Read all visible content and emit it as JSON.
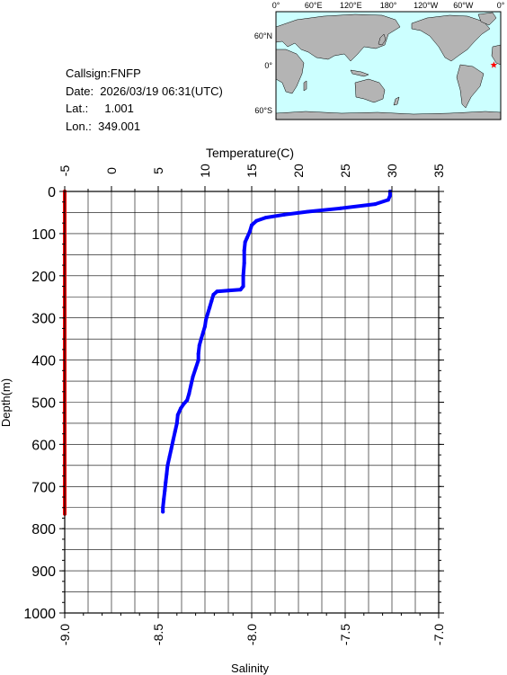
{
  "info": {
    "callsign": "Callsign:FNFP",
    "date": "Date:  2026/03/19 06:31(UTC)",
    "lat": "Lat.:     1.001",
    "lon": "Lon.:  349.001"
  },
  "map": {
    "lon_labels": [
      "0°",
      "60°E",
      "120°E",
      "180°",
      "120°W",
      "60°W",
      "0°"
    ],
    "lat_labels": [
      "60°N",
      "0°",
      "60°S"
    ],
    "station_marker": {
      "lon": 349.001,
      "lat": 1.001,
      "symbol": "star",
      "color": "#ff0000"
    },
    "ocean_color": "#ccffff",
    "land_color": "#b4b4b4"
  },
  "chart_data": {
    "type": "line",
    "top_axis": {
      "label": "Temperature(C)",
      "ticks": [
        "-5",
        "0",
        "5",
        "10",
        "15",
        "20",
        "25",
        "30",
        "35"
      ],
      "range": [
        -5,
        35
      ]
    },
    "bottom_axis": {
      "label": "Salinity",
      "ticks": [
        "-9.0",
        "-8.5",
        "-8.0",
        "-7.5",
        "-7.0"
      ],
      "range": [
        -9.0,
        -7.0
      ]
    },
    "y_axis": {
      "label": "Depth(m)",
      "ticks": [
        "0",
        "100",
        "200",
        "300",
        "400",
        "500",
        "600",
        "700",
        "800",
        "900",
        "1000"
      ],
      "range": [
        0,
        1000
      ],
      "inverted": true
    },
    "grid": true,
    "series": [
      {
        "name": "Temperature",
        "axis": "top",
        "color": "#0000ff",
        "points": [
          [
            29.8,
            0
          ],
          [
            29.8,
            10
          ],
          [
            29.6,
            20
          ],
          [
            28.2,
            30
          ],
          [
            24.5,
            40
          ],
          [
            21.0,
            48
          ],
          [
            18.5,
            55
          ],
          [
            16.5,
            62
          ],
          [
            15.5,
            70
          ],
          [
            15.0,
            80
          ],
          [
            14.8,
            95
          ],
          [
            14.5,
            110
          ],
          [
            14.3,
            120
          ],
          [
            14.2,
            140
          ],
          [
            14.2,
            170
          ],
          [
            14.1,
            200
          ],
          [
            14.1,
            225
          ],
          [
            13.8,
            233
          ],
          [
            12.5,
            235
          ],
          [
            11.3,
            237
          ],
          [
            10.9,
            245
          ],
          [
            10.7,
            260
          ],
          [
            10.5,
            275
          ],
          [
            10.3,
            290
          ],
          [
            10.1,
            305
          ],
          [
            10.0,
            320
          ],
          [
            9.8,
            335
          ],
          [
            9.6,
            350
          ],
          [
            9.4,
            365
          ],
          [
            9.3,
            385
          ],
          [
            9.3,
            400
          ],
          [
            9.0,
            420
          ],
          [
            8.7,
            440
          ],
          [
            8.5,
            460
          ],
          [
            8.3,
            480
          ],
          [
            8.1,
            495
          ],
          [
            7.7,
            505
          ],
          [
            7.4,
            515
          ],
          [
            7.1,
            530
          ],
          [
            7.0,
            550
          ],
          [
            6.8,
            570
          ],
          [
            6.6,
            590
          ],
          [
            6.4,
            610
          ],
          [
            6.2,
            630
          ],
          [
            6.0,
            650
          ],
          [
            5.9,
            670
          ],
          [
            5.8,
            690
          ],
          [
            5.7,
            710
          ],
          [
            5.6,
            730
          ],
          [
            5.5,
            750
          ],
          [
            5.5,
            760
          ]
        ]
      },
      {
        "name": "Salinity",
        "axis": "bottom",
        "color": "#ff0000",
        "points": [
          [
            -9.0,
            0
          ],
          [
            -9.0,
            100
          ],
          [
            -9.0,
            200
          ],
          [
            -9.0,
            300
          ],
          [
            -9.0,
            400
          ],
          [
            -9.0,
            500
          ],
          [
            -9.0,
            600
          ],
          [
            -9.0,
            700
          ],
          [
            -9.0,
            765
          ]
        ]
      }
    ]
  }
}
